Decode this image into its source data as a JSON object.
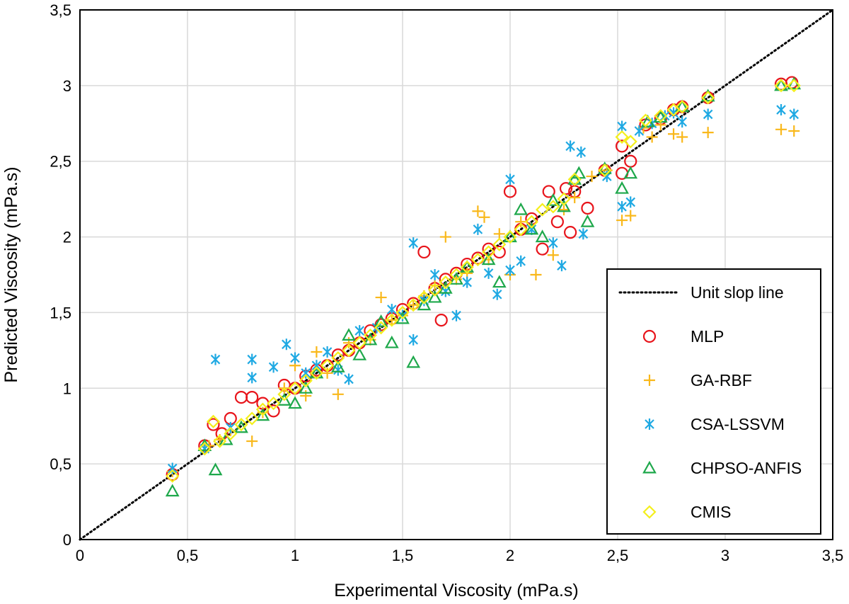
{
  "chart_data": {
    "type": "scatter",
    "title": "",
    "xlabel": "Experimental Viscosity (mPa.s)",
    "ylabel": "Predicted Viscosity (mPa.s)",
    "xlim": [
      0,
      3.5
    ],
    "ylim": [
      0,
      3.5
    ],
    "xticks": [
      "0",
      "0,5",
      "1",
      "1,5",
      "2",
      "2,5",
      "3",
      "3,5"
    ],
    "yticks": [
      "0",
      "0,5",
      "1",
      "1,5",
      "2",
      "2,5",
      "3",
      "3,5"
    ],
    "grid": true,
    "legend_position": "bottom-right",
    "reference_line": {
      "name": "Unit slop line",
      "style": "dotted",
      "color": "#000000",
      "x": [
        0,
        3.5
      ],
      "y": [
        0,
        3.5
      ]
    },
    "series": [
      {
        "name": "MLP",
        "marker": "circle",
        "color": "#e8141b",
        "points": [
          [
            0.43,
            0.43
          ],
          [
            0.58,
            0.62
          ],
          [
            0.62,
            0.76
          ],
          [
            0.66,
            0.7
          ],
          [
            0.7,
            0.8
          ],
          [
            0.75,
            0.94
          ],
          [
            0.8,
            0.94
          ],
          [
            0.85,
            0.9
          ],
          [
            0.9,
            0.85
          ],
          [
            0.95,
            1.02
          ],
          [
            1.0,
            1.0
          ],
          [
            1.05,
            1.08
          ],
          [
            1.1,
            1.12
          ],
          [
            1.15,
            1.15
          ],
          [
            1.2,
            1.22
          ],
          [
            1.25,
            1.25
          ],
          [
            1.3,
            1.3
          ],
          [
            1.35,
            1.38
          ],
          [
            1.4,
            1.42
          ],
          [
            1.45,
            1.46
          ],
          [
            1.5,
            1.52
          ],
          [
            1.55,
            1.56
          ],
          [
            1.6,
            1.9
          ],
          [
            1.65,
            1.66
          ],
          [
            1.68,
            1.45
          ],
          [
            1.7,
            1.72
          ],
          [
            1.75,
            1.76
          ],
          [
            1.8,
            1.82
          ],
          [
            1.85,
            1.86
          ],
          [
            1.9,
            1.92
          ],
          [
            1.95,
            1.9
          ],
          [
            2.0,
            2.3
          ],
          [
            2.05,
            2.05
          ],
          [
            2.1,
            2.12
          ],
          [
            2.15,
            1.92
          ],
          [
            2.18,
            2.3
          ],
          [
            2.22,
            2.1
          ],
          [
            2.26,
            2.32
          ],
          [
            2.28,
            2.03
          ],
          [
            2.3,
            2.3
          ],
          [
            2.36,
            2.19
          ],
          [
            2.44,
            2.44
          ],
          [
            2.52,
            2.42
          ],
          [
            2.52,
            2.6
          ],
          [
            2.56,
            2.5
          ],
          [
            2.63,
            2.74
          ],
          [
            2.7,
            2.78
          ],
          [
            2.76,
            2.84
          ],
          [
            2.8,
            2.86
          ],
          [
            2.92,
            2.92
          ],
          [
            3.26,
            3.01
          ],
          [
            3.31,
            3.02
          ]
        ]
      },
      {
        "name": "GA-RBF",
        "marker": "plus",
        "color": "#f9b81b",
        "points": [
          [
            0.43,
            0.45
          ],
          [
            0.6,
            0.62
          ],
          [
            0.65,
            0.66
          ],
          [
            0.7,
            0.72
          ],
          [
            0.8,
            0.65
          ],
          [
            0.85,
            0.84
          ],
          [
            0.95,
            1.0
          ],
          [
            1.0,
            1.15
          ],
          [
            1.05,
            0.95
          ],
          [
            1.1,
            1.24
          ],
          [
            1.15,
            1.1
          ],
          [
            1.2,
            0.96
          ],
          [
            1.25,
            1.3
          ],
          [
            1.35,
            1.32
          ],
          [
            1.4,
            1.6
          ],
          [
            1.45,
            1.45
          ],
          [
            1.5,
            1.48
          ],
          [
            1.55,
            1.55
          ],
          [
            1.6,
            1.61
          ],
          [
            1.65,
            1.68
          ],
          [
            1.7,
            2.0
          ],
          [
            1.75,
            1.72
          ],
          [
            1.8,
            1.76
          ],
          [
            1.85,
            2.17
          ],
          [
            1.88,
            2.13
          ],
          [
            1.9,
            1.85
          ],
          [
            1.95,
            2.02
          ],
          [
            2.0,
            1.75
          ],
          [
            2.05,
            2.1
          ],
          [
            2.12,
            1.75
          ],
          [
            2.2,
            1.88
          ],
          [
            2.25,
            2.18
          ],
          [
            2.3,
            2.26
          ],
          [
            2.38,
            2.4
          ],
          [
            2.45,
            2.44
          ],
          [
            2.52,
            2.11
          ],
          [
            2.56,
            2.14
          ],
          [
            2.62,
            2.72
          ],
          [
            2.66,
            2.66
          ],
          [
            2.7,
            2.74
          ],
          [
            2.76,
            2.68
          ],
          [
            2.8,
            2.66
          ],
          [
            2.92,
            2.69
          ],
          [
            3.26,
            2.71
          ],
          [
            3.32,
            2.7
          ]
        ]
      },
      {
        "name": "CSA-LSSVM",
        "marker": "asterisk",
        "color": "#1fa9e3",
        "points": [
          [
            0.43,
            0.47
          ],
          [
            0.58,
            0.6
          ],
          [
            0.63,
            1.19
          ],
          [
            0.7,
            0.74
          ],
          [
            0.8,
            1.19
          ],
          [
            0.8,
            1.07
          ],
          [
            0.9,
            1.14
          ],
          [
            0.96,
            1.29
          ],
          [
            1.0,
            1.2
          ],
          [
            1.05,
            1.1
          ],
          [
            1.1,
            1.15
          ],
          [
            1.15,
            1.24
          ],
          [
            1.2,
            1.12
          ],
          [
            1.25,
            1.06
          ],
          [
            1.3,
            1.38
          ],
          [
            1.38,
            1.4
          ],
          [
            1.45,
            1.52
          ],
          [
            1.5,
            1.48
          ],
          [
            1.55,
            1.32
          ],
          [
            1.55,
            1.96
          ],
          [
            1.6,
            1.58
          ],
          [
            1.65,
            1.75
          ],
          [
            1.7,
            1.64
          ],
          [
            1.75,
            1.48
          ],
          [
            1.8,
            1.7
          ],
          [
            1.85,
            2.05
          ],
          [
            1.9,
            1.76
          ],
          [
            1.94,
            1.62
          ],
          [
            2.0,
            2.38
          ],
          [
            2.0,
            1.78
          ],
          [
            2.05,
            1.84
          ],
          [
            2.1,
            2.05
          ],
          [
            2.2,
            1.96
          ],
          [
            2.24,
            1.81
          ],
          [
            2.28,
            2.6
          ],
          [
            2.33,
            2.56
          ],
          [
            2.34,
            2.02
          ],
          [
            2.45,
            2.4
          ],
          [
            2.52,
            2.2
          ],
          [
            2.52,
            2.73
          ],
          [
            2.56,
            2.23
          ],
          [
            2.6,
            2.7
          ],
          [
            2.66,
            2.75
          ],
          [
            2.72,
            2.8
          ],
          [
            2.76,
            2.82
          ],
          [
            2.8,
            2.76
          ],
          [
            2.92,
            2.81
          ],
          [
            3.26,
            2.84
          ],
          [
            3.32,
            2.81
          ]
        ]
      },
      {
        "name": "CHPSO-ANFIS",
        "marker": "triangle",
        "color": "#1ea84b",
        "points": [
          [
            0.43,
            0.32
          ],
          [
            0.58,
            0.62
          ],
          [
            0.63,
            0.46
          ],
          [
            0.68,
            0.66
          ],
          [
            0.75,
            0.74
          ],
          [
            0.85,
            0.82
          ],
          [
            0.95,
            0.92
          ],
          [
            1.0,
            0.9
          ],
          [
            1.05,
            1.0
          ],
          [
            1.1,
            1.1
          ],
          [
            1.2,
            1.14
          ],
          [
            1.25,
            1.35
          ],
          [
            1.3,
            1.22
          ],
          [
            1.35,
            1.32
          ],
          [
            1.4,
            1.44
          ],
          [
            1.45,
            1.3
          ],
          [
            1.5,
            1.46
          ],
          [
            1.55,
            1.17
          ],
          [
            1.6,
            1.55
          ],
          [
            1.65,
            1.6
          ],
          [
            1.7,
            1.66
          ],
          [
            1.75,
            1.72
          ],
          [
            1.8,
            1.8
          ],
          [
            1.9,
            1.85
          ],
          [
            1.95,
            1.7
          ],
          [
            2.0,
            2.0
          ],
          [
            2.05,
            2.18
          ],
          [
            2.1,
            2.05
          ],
          [
            2.15,
            2.0
          ],
          [
            2.2,
            2.24
          ],
          [
            2.25,
            2.2
          ],
          [
            2.3,
            2.38
          ],
          [
            2.32,
            2.42
          ],
          [
            2.36,
            2.1
          ],
          [
            2.44,
            2.45
          ],
          [
            2.52,
            2.32
          ],
          [
            2.56,
            2.42
          ],
          [
            2.64,
            2.76
          ],
          [
            2.7,
            2.79
          ],
          [
            2.8,
            2.86
          ],
          [
            2.92,
            2.93
          ],
          [
            3.26,
            3.0
          ],
          [
            3.32,
            3.01
          ]
        ]
      },
      {
        "name": "CMIS",
        "marker": "diamond",
        "color": "#f4ef1c",
        "points": [
          [
            0.43,
            0.42
          ],
          [
            0.58,
            0.6
          ],
          [
            0.62,
            0.78
          ],
          [
            0.65,
            0.65
          ],
          [
            0.7,
            0.7
          ],
          [
            0.75,
            0.76
          ],
          [
            0.8,
            0.8
          ],
          [
            0.85,
            0.86
          ],
          [
            0.9,
            0.9
          ],
          [
            0.95,
            0.96
          ],
          [
            1.0,
            1.0
          ],
          [
            1.05,
            1.05
          ],
          [
            1.1,
            1.1
          ],
          [
            1.15,
            1.15
          ],
          [
            1.2,
            1.2
          ],
          [
            1.25,
            1.25
          ],
          [
            1.3,
            1.3
          ],
          [
            1.35,
            1.35
          ],
          [
            1.4,
            1.4
          ],
          [
            1.45,
            1.45
          ],
          [
            1.5,
            1.5
          ],
          [
            1.55,
            1.55
          ],
          [
            1.6,
            1.6
          ],
          [
            1.65,
            1.65
          ],
          [
            1.7,
            1.7
          ],
          [
            1.75,
            1.75
          ],
          [
            1.8,
            1.8
          ],
          [
            1.85,
            1.85
          ],
          [
            1.9,
            1.9
          ],
          [
            1.95,
            1.95
          ],
          [
            2.0,
            2.0
          ],
          [
            2.05,
            2.05
          ],
          [
            2.1,
            2.1
          ],
          [
            2.15,
            2.18
          ],
          [
            2.2,
            2.2
          ],
          [
            2.25,
            2.25
          ],
          [
            2.3,
            2.38
          ],
          [
            2.44,
            2.44
          ],
          [
            2.52,
            2.66
          ],
          [
            2.56,
            2.63
          ],
          [
            2.63,
            2.77
          ],
          [
            2.7,
            2.8
          ],
          [
            2.76,
            2.84
          ],
          [
            2.8,
            2.86
          ],
          [
            2.92,
            2.92
          ],
          [
            3.26,
            3.0
          ],
          [
            3.32,
            3.0
          ]
        ]
      }
    ]
  }
}
